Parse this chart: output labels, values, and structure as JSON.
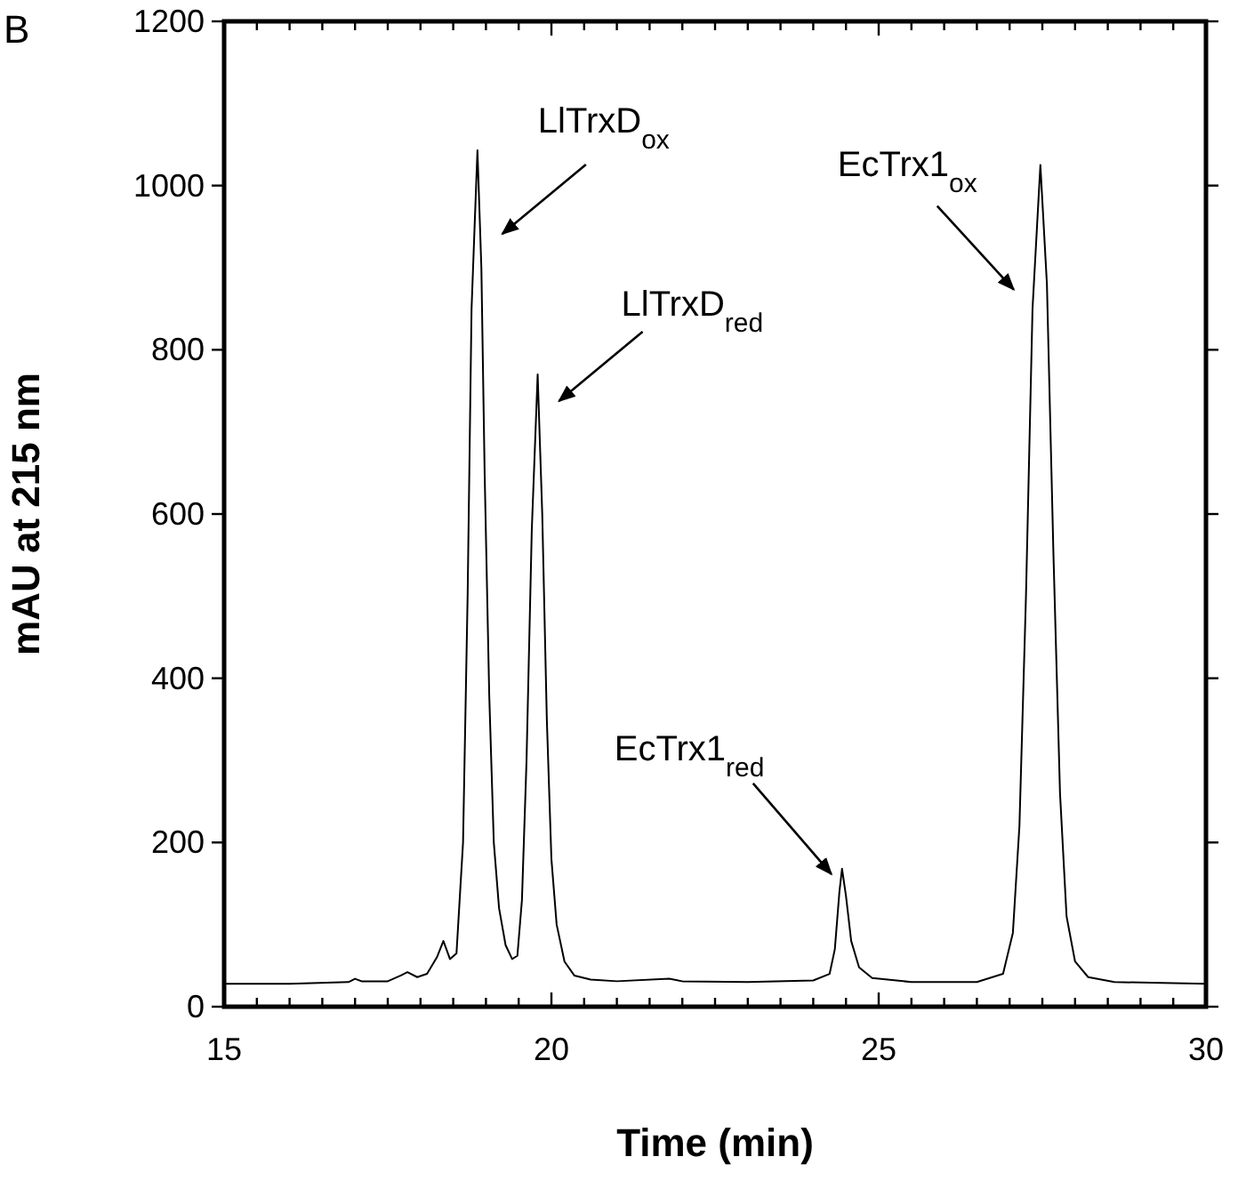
{
  "chart_data": {
    "type": "line",
    "title": "B",
    "xlabel": "Time (min)",
    "ylabel": "mAU at 215 nm",
    "color": "#000000",
    "line_style": "solid",
    "grid": false,
    "xlim": [
      15,
      30
    ],
    "ylim": [
      0,
      1200
    ],
    "xticks": [
      15,
      {
        "value": 15.5,
        "label": null
      },
      {
        "value": 16,
        "label": null
      },
      {
        "value": 16.5,
        "label": null
      },
      {
        "value": 17,
        "label": null
      },
      {
        "value": 17.5,
        "label": null
      },
      {
        "value": 18,
        "label": null
      },
      {
        "value": 18.5,
        "label": null
      },
      {
        "value": 19,
        "label": null
      },
      {
        "value": 19.5,
        "label": null
      },
      20,
      {
        "value": 20.5,
        "label": null
      },
      {
        "value": 21,
        "label": null
      },
      {
        "value": 21.5,
        "label": null
      },
      {
        "value": 22,
        "label": null
      },
      {
        "value": 22.5,
        "label": null
      },
      {
        "value": 23,
        "label": null
      },
      {
        "value": 23.5,
        "label": null
      },
      {
        "value": 24,
        "label": null
      },
      {
        "value": 24.5,
        "label": null
      },
      25,
      {
        "value": 25.5,
        "label": null
      },
      {
        "value": 26,
        "label": null
      },
      {
        "value": 26.5,
        "label": null
      },
      {
        "value": 27,
        "label": null
      },
      {
        "value": 27.5,
        "label": null
      },
      {
        "value": 28,
        "label": null
      },
      {
        "value": 28.5,
        "label": null
      },
      {
        "value": 29,
        "label": null
      },
      {
        "value": 29.5,
        "label": null
      },
      30
    ],
    "yticks": [
      0,
      200,
      400,
      600,
      800,
      1000,
      1200
    ],
    "x": [
      15.0,
      16.0,
      16.9,
      17.0,
      17.1,
      17.5,
      17.7,
      17.8,
      17.95,
      18.1,
      18.25,
      18.35,
      18.45,
      18.55,
      18.65,
      18.72,
      18.78,
      18.87,
      18.93,
      18.98,
      19.05,
      19.12,
      19.2,
      19.3,
      19.4,
      19.48,
      19.55,
      19.62,
      19.7,
      19.79,
      19.86,
      19.93,
      20.0,
      20.08,
      20.2,
      20.35,
      20.6,
      21.0,
      21.8,
      22.0,
      23.0,
      24.0,
      24.25,
      24.33,
      24.4,
      24.44,
      24.5,
      24.58,
      24.7,
      24.9,
      25.5,
      26.5,
      26.9,
      27.05,
      27.15,
      27.25,
      27.35,
      27.47,
      27.57,
      27.67,
      27.77,
      27.87,
      28.0,
      28.2,
      28.6,
      30.0
    ],
    "values": [
      28,
      28,
      30,
      34,
      31,
      31,
      38,
      42,
      36,
      40,
      60,
      80,
      58,
      65,
      200,
      500,
      850,
      1043,
      900,
      650,
      380,
      200,
      120,
      75,
      58,
      62,
      130,
      300,
      580,
      770,
      600,
      350,
      180,
      100,
      55,
      38,
      33,
      31,
      34,
      31,
      30,
      32,
      40,
      70,
      140,
      168,
      135,
      80,
      48,
      35,
      30,
      30,
      40,
      90,
      220,
      500,
      850,
      1025,
      880,
      550,
      260,
      110,
      55,
      36,
      30,
      28
    ],
    "annotations": [
      {
        "text": "LlTrxD$_{ox}$",
        "x": 18.87,
        "y": 1043
      },
      {
        "text": "LlTrxD$_{red}$",
        "x": 19.79,
        "y": 770
      },
      {
        "text": "EcTrx1$_{red}$",
        "x": 24.44,
        "y": 168
      },
      {
        "text": "EcTrx1$_{ox}$",
        "x": 27.47,
        "y": 1025
      }
    ]
  }
}
